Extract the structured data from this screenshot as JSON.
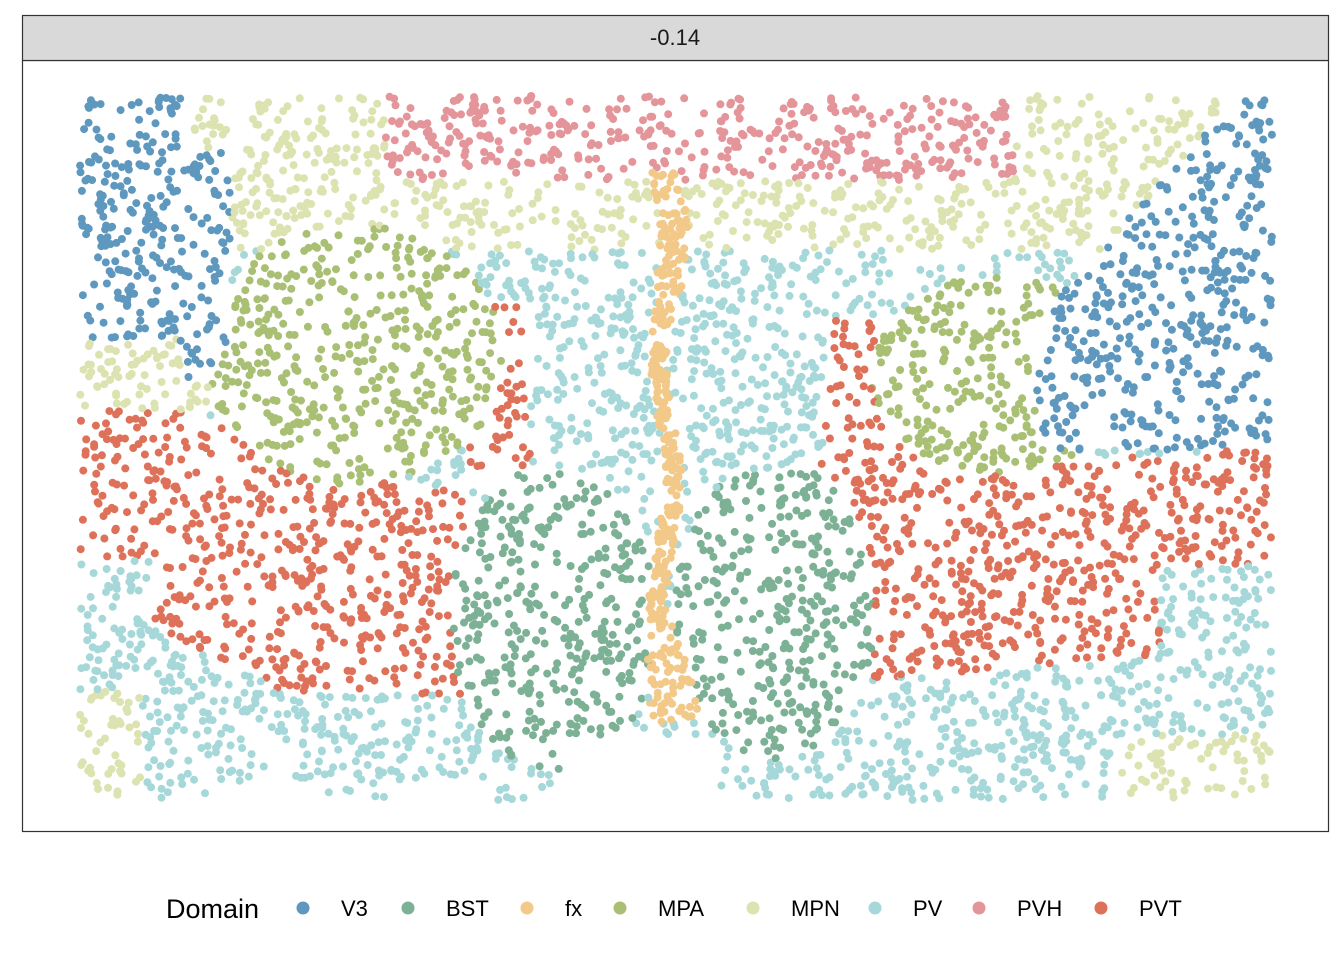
{
  "chart_data": {
    "type": "scatter",
    "facet_label": "-0.14",
    "legend": {
      "title": "Domain",
      "placement": "bottom",
      "entries": [
        {
          "name": "V3",
          "color": "#5F98BE"
        },
        {
          "name": "BST",
          "color": "#7DB196"
        },
        {
          "name": "fx",
          "color": "#F3C98A"
        },
        {
          "name": "MPA",
          "color": "#A9C074"
        },
        {
          "name": "MPN",
          "color": "#DCE3B0"
        },
        {
          "name": "PV",
          "color": "#A6D8DA"
        },
        {
          "name": "PVH",
          "color": "#E4959A"
        },
        {
          "name": "PVT",
          "color": "#DE7159"
        }
      ]
    },
    "axes": {
      "x_visible": false,
      "y_visible": false,
      "grid": false
    },
    "panel_background": "#FFFFFF",
    "strip_background": "#D9D9D9"
  }
}
